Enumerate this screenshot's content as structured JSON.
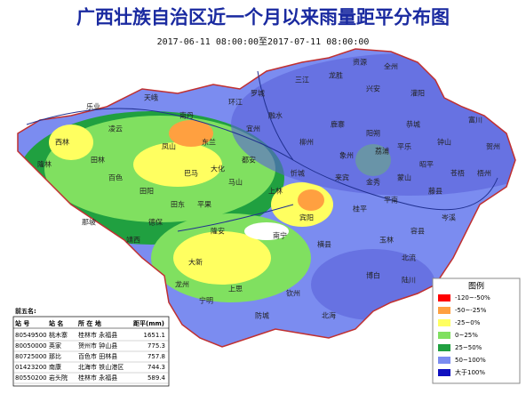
{
  "header": {
    "title": "广西壮族自治区近一个月以来雨量距平分布图",
    "subtitle": "2017-06-11 08:00:00至2017-07-11 08:00:00"
  },
  "legend": {
    "title": "图例",
    "items": [
      {
        "label": "-120~-50%",
        "color": "#ff0000"
      },
      {
        "label": "-50~-25%",
        "color": "#ffa040"
      },
      {
        "label": "-25~0%",
        "color": "#ffff60"
      },
      {
        "label": "0~25%",
        "color": "#80e060"
      },
      {
        "label": "25~50%",
        "color": "#20a040"
      },
      {
        "label": "50~100%",
        "color": "#7b8cf0"
      },
      {
        "label": "大于100%",
        "color": "#1010c0"
      }
    ]
  },
  "table": {
    "caption": "前五名:",
    "header": [
      "站 号",
      "站 名",
      "所 在 地",
      "距平(mm)"
    ],
    "rows": [
      [
        "80549500",
        "桃木寨",
        "桂林市 永福县",
        "1651.1"
      ],
      [
        "80050000",
        "英家",
        "贺州市 钟山县",
        "775.3"
      ],
      [
        "80725000",
        "那比",
        "百色市 田林县",
        "757.8"
      ],
      [
        "01423200",
        "南康",
        "北海市 铁山港区",
        "744.3"
      ],
      [
        "80550200",
        "岩头院",
        "桂林市 永福县",
        "589.4"
      ]
    ]
  },
  "places": [
    "乐业",
    "天峨",
    "南丹",
    "环江",
    "融水",
    "三江",
    "龙胜",
    "资源",
    "全州",
    "兴安",
    "灌阳",
    "恭城",
    "阳朔",
    "富川",
    "钟山",
    "贺州",
    "昭平",
    "苍梧",
    "梧州",
    "藤县",
    "岑溪",
    "平南",
    "桂平",
    "容县",
    "北流",
    "玉林",
    "博白",
    "陆川",
    "北海",
    "钦州",
    "防城",
    "上思",
    "宁明",
    "龙州",
    "大新",
    "靖西",
    "那坡",
    "德保",
    "田阳",
    "田东",
    "平果",
    "隆安",
    "南宁",
    "横县",
    "宾阳",
    "上林",
    "马山",
    "都安",
    "大化",
    "巴马",
    "东兰",
    "凤山",
    "凌云",
    "田林",
    "西林",
    "隆林",
    "百色",
    "来宾",
    "象州",
    "柳州",
    "鹿寨",
    "宜州",
    "罗城",
    "忻城",
    "金秀",
    "蒙山",
    "荔浦",
    "平乐"
  ]
}
